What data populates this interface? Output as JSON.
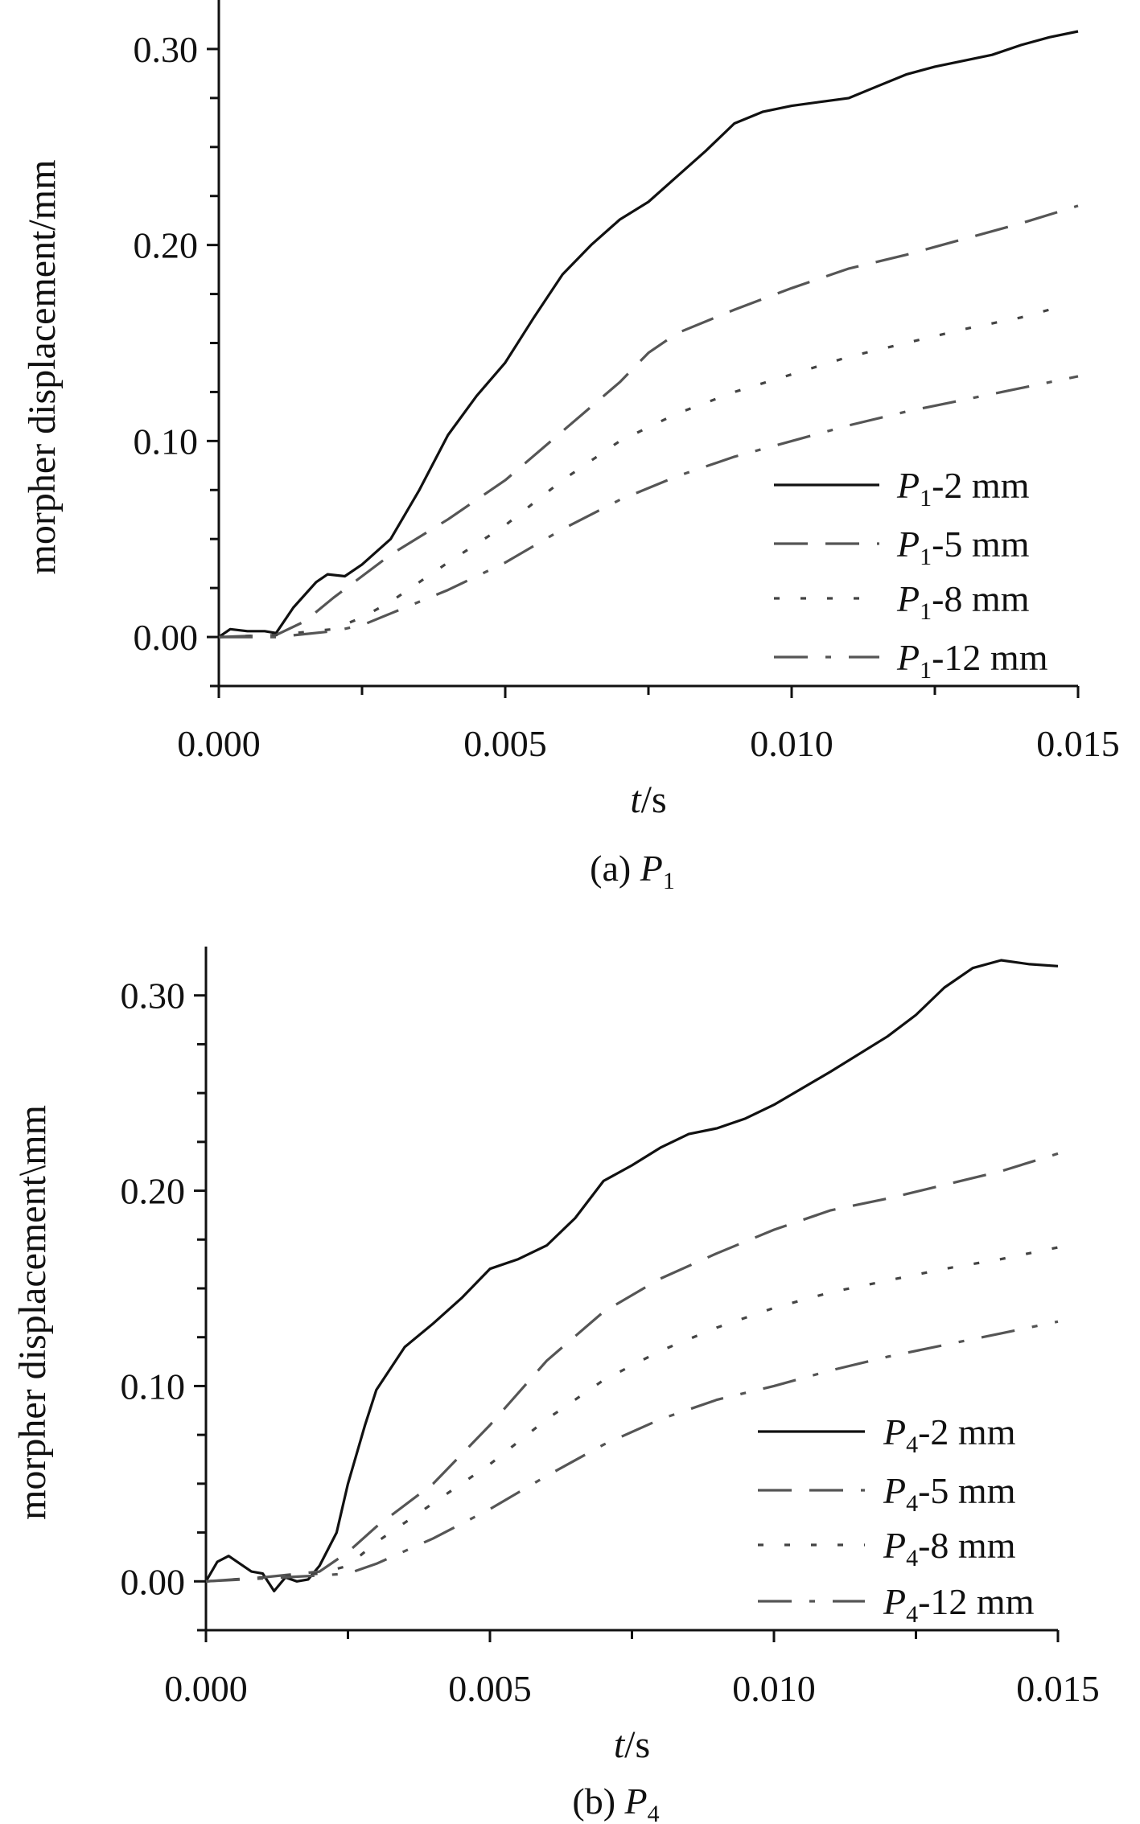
{
  "chart_data": [
    {
      "type": "line",
      "caption": {
        "prefix": "(a) ",
        "symbol": "P",
        "sub": "1"
      },
      "xlabel": {
        "var": "t",
        "unit": "/s"
      },
      "ylabel": "morpher displacement/mm",
      "xlim": [
        0,
        0.015
      ],
      "ylim": [
        -0.025,
        0.325
      ],
      "xticks": [
        "0.000",
        "0.005",
        "0.010",
        "0.015"
      ],
      "yticks": [
        "0.00",
        "0.10",
        "0.20",
        "0.30"
      ],
      "grid": false,
      "legend_position": "bottom-right",
      "series": [
        {
          "name": "P1-2 mm",
          "label": {
            "symbol": "P",
            "sub": "1",
            "rest": "-2 mm"
          },
          "style": "solid",
          "color": "#111111",
          "x": [
            0,
            0.0002,
            0.0005,
            0.0008,
            0.001,
            0.0013,
            0.0017,
            0.0019,
            0.0022,
            0.0025,
            0.003,
            0.0035,
            0.004,
            0.0045,
            0.005,
            0.0055,
            0.006,
            0.0065,
            0.007,
            0.0075,
            0.008,
            0.0085,
            0.009,
            0.0095,
            0.01,
            0.0105,
            0.011,
            0.0115,
            0.012,
            0.0125,
            0.013,
            0.0135,
            0.014,
            0.0145,
            0.015
          ],
          "y": [
            0,
            0.004,
            0.003,
            0.003,
            0.002,
            0.015,
            0.028,
            0.032,
            0.031,
            0.037,
            0.05,
            0.075,
            0.103,
            0.123,
            0.14,
            0.163,
            0.185,
            0.2,
            0.213,
            0.222,
            0.235,
            0.248,
            0.262,
            0.268,
            0.271,
            0.273,
            0.275,
            0.281,
            0.287,
            0.291,
            0.294,
            0.297,
            0.302,
            0.306,
            0.309
          ]
        },
        {
          "name": "P1-5 mm",
          "label": {
            "symbol": "P",
            "sub": "1",
            "rest": "-5 mm"
          },
          "style": "dash",
          "color": "#555555",
          "x": [
            0,
            0.001,
            0.0015,
            0.002,
            0.003,
            0.004,
            0.005,
            0.006,
            0.007,
            0.0075,
            0.008,
            0.009,
            0.01,
            0.011,
            0.012,
            0.013,
            0.014,
            0.015
          ],
          "y": [
            0,
            0.001,
            0.008,
            0.02,
            0.042,
            0.06,
            0.08,
            0.105,
            0.13,
            0.145,
            0.155,
            0.167,
            0.178,
            0.188,
            0.195,
            0.203,
            0.211,
            0.22
          ]
        },
        {
          "name": "P1-8 mm",
          "label": {
            "symbol": "P",
            "sub": "1",
            "rest": "-8 mm"
          },
          "style": "dot",
          "color": "#444444",
          "x": [
            0,
            0.001,
            0.002,
            0.0025,
            0.003,
            0.004,
            0.005,
            0.006,
            0.007,
            0.008,
            0.009,
            0.01,
            0.011,
            0.012,
            0.013,
            0.014,
            0.0145
          ],
          "y": [
            0,
            0.001,
            0.004,
            0.01,
            0.018,
            0.038,
            0.057,
            0.08,
            0.1,
            0.114,
            0.125,
            0.134,
            0.143,
            0.15,
            0.157,
            0.163,
            0.167
          ]
        },
        {
          "name": "P1-12 mm",
          "label": {
            "symbol": "P",
            "sub": "1",
            "rest": "-12 mm"
          },
          "style": "dashdot",
          "color": "#555555",
          "x": [
            0,
            0.001,
            0.002,
            0.0025,
            0.003,
            0.004,
            0.005,
            0.006,
            0.007,
            0.008,
            0.009,
            0.01,
            0.011,
            0.012,
            0.013,
            0.014,
            0.015
          ],
          "y": [
            0,
            0,
            0.003,
            0.006,
            0.012,
            0.024,
            0.038,
            0.055,
            0.07,
            0.082,
            0.092,
            0.1,
            0.108,
            0.115,
            0.121,
            0.127,
            0.133
          ]
        }
      ]
    },
    {
      "type": "line",
      "caption": {
        "prefix": "(b) ",
        "symbol": "P",
        "sub": "4"
      },
      "xlabel": {
        "var": "t",
        "unit": "/s"
      },
      "ylabel": "morpher displacement\\mm",
      "xlim": [
        0,
        0.015
      ],
      "ylim": [
        -0.025,
        0.325
      ],
      "xticks": [
        "0.000",
        "0.005",
        "0.010",
        "0.015"
      ],
      "yticks": [
        "0.00",
        "0.10",
        "0.20",
        "0.30"
      ],
      "grid": false,
      "legend_position": "bottom-right",
      "series": [
        {
          "name": "P4-2 mm",
          "label": {
            "symbol": "P",
            "sub": "4",
            "rest": "-2 mm"
          },
          "style": "solid",
          "color": "#111111",
          "x": [
            0,
            0.0002,
            0.0004,
            0.0006,
            0.0008,
            0.001,
            0.0012,
            0.0014,
            0.0016,
            0.0018,
            0.002,
            0.0023,
            0.0025,
            0.0028,
            0.003,
            0.0035,
            0.004,
            0.0045,
            0.005,
            0.0055,
            0.006,
            0.0065,
            0.007,
            0.0075,
            0.008,
            0.0085,
            0.009,
            0.0095,
            0.01,
            0.011,
            0.012,
            0.0125,
            0.013,
            0.0135,
            0.014,
            0.0145,
            0.015
          ],
          "y": [
            0,
            0.01,
            0.013,
            0.009,
            0.005,
            0.004,
            -0.005,
            0.002,
            0,
            0.001,
            0.008,
            0.025,
            0.05,
            0.08,
            0.098,
            0.12,
            0.132,
            0.145,
            0.16,
            0.165,
            0.172,
            0.186,
            0.205,
            0.213,
            0.222,
            0.229,
            0.232,
            0.237,
            0.244,
            0.261,
            0.279,
            0.29,
            0.304,
            0.314,
            0.318,
            0.316,
            0.315
          ]
        },
        {
          "name": "P4-5 mm",
          "label": {
            "symbol": "P",
            "sub": "4",
            "rest": "-5 mm"
          },
          "style": "dash",
          "color": "#555555",
          "x": [
            0,
            0.001,
            0.002,
            0.0025,
            0.003,
            0.004,
            0.005,
            0.006,
            0.007,
            0.008,
            0.009,
            0.01,
            0.011,
            0.012,
            0.013,
            0.014,
            0.015
          ],
          "y": [
            0,
            0.002,
            0.005,
            0.015,
            0.028,
            0.05,
            0.08,
            0.113,
            0.138,
            0.155,
            0.168,
            0.18,
            0.19,
            0.196,
            0.203,
            0.21,
            0.219
          ]
        },
        {
          "name": "P4-8 mm",
          "label": {
            "symbol": "P",
            "sub": "4",
            "rest": "-8 mm"
          },
          "style": "dot",
          "color": "#444444",
          "x": [
            0,
            0.002,
            0.0025,
            0.003,
            0.004,
            0.005,
            0.006,
            0.007,
            0.008,
            0.009,
            0.01,
            0.011,
            0.012,
            0.013,
            0.014,
            0.015
          ],
          "y": [
            0,
            0.004,
            0.008,
            0.02,
            0.04,
            0.06,
            0.083,
            0.103,
            0.118,
            0.13,
            0.14,
            0.148,
            0.154,
            0.16,
            0.165,
            0.171
          ]
        },
        {
          "name": "P4-12 mm",
          "label": {
            "symbol": "P",
            "sub": "4",
            "rest": "-12 mm"
          },
          "style": "dashdot",
          "color": "#555555",
          "x": [
            0,
            0.002,
            0.0025,
            0.003,
            0.004,
            0.005,
            0.006,
            0.007,
            0.008,
            0.009,
            0.01,
            0.011,
            0.012,
            0.013,
            0.014,
            0.015
          ],
          "y": [
            0,
            0.003,
            0.004,
            0.009,
            0.022,
            0.037,
            0.054,
            0.07,
            0.083,
            0.093,
            0.1,
            0.108,
            0.115,
            0.121,
            0.127,
            0.133
          ]
        }
      ]
    }
  ]
}
